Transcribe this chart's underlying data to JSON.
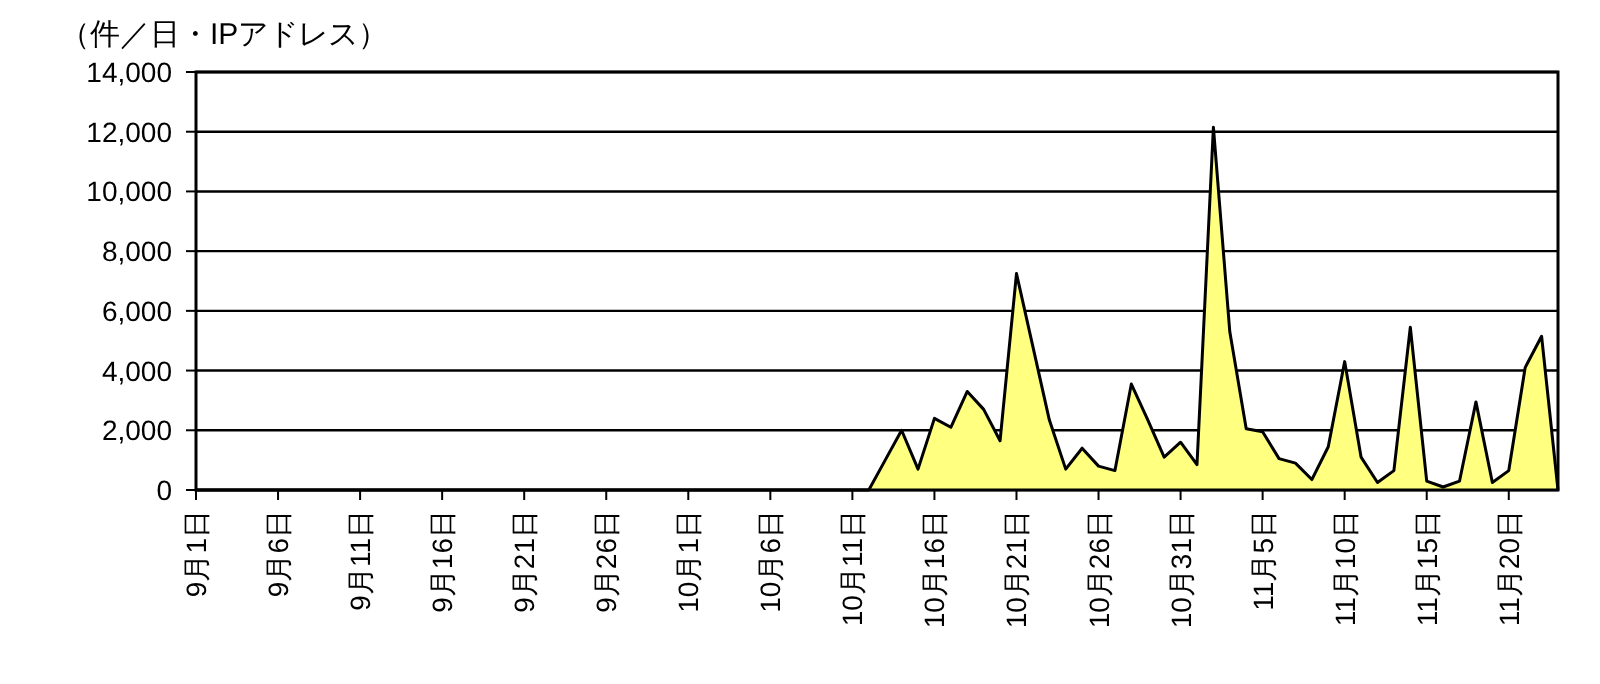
{
  "chart_data": {
    "type": "area",
    "ylabel": "（件／日・IPアドレス）",
    "categories": [
      "9月1日",
      null,
      null,
      null,
      null,
      "9月6日",
      null,
      null,
      null,
      null,
      "9月11日",
      null,
      null,
      null,
      null,
      "9月16日",
      null,
      null,
      null,
      null,
      "9月21日",
      null,
      null,
      null,
      null,
      "9月26日",
      null,
      null,
      null,
      null,
      "10月1日",
      null,
      null,
      null,
      null,
      "10月6日",
      null,
      null,
      null,
      null,
      "10月11日",
      null,
      null,
      null,
      null,
      "10月16日",
      null,
      null,
      null,
      null,
      "10月21日",
      null,
      null,
      null,
      null,
      "10月26日",
      null,
      null,
      null,
      null,
      "10月31日",
      null,
      null,
      null,
      null,
      "11月5日",
      null,
      null,
      null,
      null,
      "11月10日",
      null,
      null,
      null,
      null,
      "11月15日",
      null,
      null,
      null,
      null,
      "11月20日",
      null,
      null,
      null
    ],
    "values": [
      0,
      0,
      0,
      0,
      0,
      0,
      0,
      0,
      0,
      0,
      0,
      0,
      0,
      0,
      0,
      0,
      0,
      0,
      0,
      0,
      0,
      0,
      0,
      0,
      0,
      0,
      0,
      0,
      0,
      0,
      0,
      0,
      0,
      0,
      0,
      0,
      0,
      0,
      0,
      0,
      0,
      0,
      1000,
      2000,
      700,
      2400,
      2100,
      3300,
      2700,
      1650,
      7250,
      4800,
      2350,
      700,
      1400,
      800,
      650,
      3550,
      2350,
      1100,
      1600,
      850,
      12150,
      5300,
      2050,
      1950,
      1050,
      900,
      350,
      1450,
      4300,
      1100,
      250,
      650,
      5450,
      300,
      100,
      300,
      2950,
      250,
      650,
      4100,
      5150,
      0
    ],
    "color": "#ffff80",
    "ylim": [
      0,
      14000
    ],
    "yticks": [
      0,
      {
        "value": 2000,
        "label": "2,000"
      },
      {
        "value": 4000,
        "label": "4,000"
      },
      {
        "value": 6000,
        "label": "6,000"
      },
      {
        "value": 8000,
        "label": "8,000"
      },
      {
        "value": 10000,
        "label": "10,000"
      },
      {
        "value": 12000,
        "label": "12,000"
      },
      {
        "value": 14000,
        "label": "14,000"
      }
    ],
    "grid": "y"
  }
}
